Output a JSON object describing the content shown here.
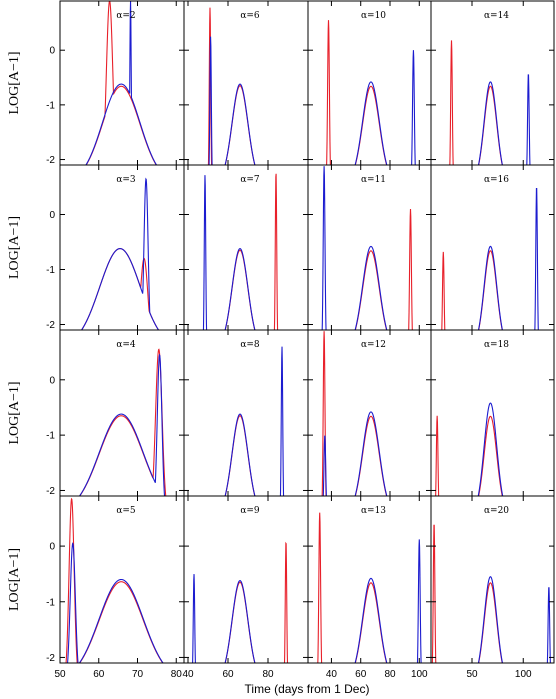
{
  "chart_data": {
    "type": "line",
    "xlabel": "Time (days from 1 Dec)",
    "ylabel": "LOG[A−1]",
    "ylim": [
      -2.1,
      0.9
    ],
    "yticks": [
      "-2",
      "-1",
      "0"
    ],
    "grid": false,
    "series_colors": {
      "red": "#e8202a",
      "blue": "#1c1ccf"
    },
    "columns": [
      {
        "xlim": [
          50,
          82
        ],
        "xticks": [
          "50",
          "60",
          "70",
          "80"
        ]
      },
      {
        "xlim": [
          38,
          100
        ],
        "xticks": [
          "40",
          "60",
          "80"
        ]
      },
      {
        "xlim": [
          24,
          108
        ],
        "xticks": [
          "40",
          "60",
          "80",
          "100"
        ]
      },
      {
        "xlim": [
          10,
          130
        ],
        "xticks": [
          "50",
          "100"
        ]
      }
    ],
    "panels": [
      {
        "label": "α=2",
        "bump": {
          "red": {
            "center": 65.8,
            "peak": -0.66,
            "halfwidth": 11
          },
          "blue": {
            "center": 65.8,
            "peak": -0.62,
            "halfwidth": 11
          }
        },
        "spikes": [
          {
            "color": "red",
            "x": 62.8,
            "y": 0.9,
            "halfwidth": 1.4
          },
          {
            "color": "blue",
            "x": 68.2,
            "y": 0.9,
            "halfwidth": 0.3
          }
        ]
      },
      {
        "label": "α=6",
        "bump": {
          "red": {
            "center": 66,
            "peak": -0.65,
            "halfwidth": 9
          },
          "blue": {
            "center": 66,
            "peak": -0.62,
            "halfwidth": 9
          }
        },
        "spikes": [
          {
            "color": "red",
            "x": 51,
            "y": 0.78,
            "halfwidth": 0.6
          },
          {
            "color": "blue",
            "x": 51.3,
            "y": 0.25,
            "halfwidth": 0.6
          }
        ]
      },
      {
        "label": "α=10",
        "bump": {
          "red": {
            "center": 67,
            "peak": -0.66,
            "halfwidth": 13
          },
          "blue": {
            "center": 67,
            "peak": -0.58,
            "halfwidth": 13
          }
        },
        "spikes": [
          {
            "color": "red",
            "x": 38,
            "y": 0.55,
            "halfwidth": 1
          },
          {
            "color": "blue",
            "x": 96,
            "y": 0.0,
            "halfwidth": 1
          }
        ]
      },
      {
        "label": "α=14",
        "bump": {
          "red": {
            "center": 68,
            "peak": -0.66,
            "halfwidth": 14
          },
          "blue": {
            "center": 68,
            "peak": -0.58,
            "halfwidth": 14
          }
        },
        "spikes": [
          {
            "color": "red",
            "x": 30,
            "y": 0.18,
            "halfwidth": 1.3
          },
          {
            "color": "blue",
            "x": 105,
            "y": -0.42,
            "halfwidth": 1.3
          }
        ]
      },
      {
        "label": "α=3",
        "bump": {
          "red": {
            "center": 65.5,
            "peak": -0.62,
            "halfwidth": 12
          },
          "blue": {
            "center": 65.5,
            "peak": -0.62,
            "halfwidth": 12
          }
        },
        "spikes": [
          {
            "color": "blue",
            "x": 72.2,
            "y": 0.65,
            "halfwidth": 0.9
          },
          {
            "color": "red",
            "x": 71.7,
            "y": -0.8,
            "halfwidth": 1.6
          }
        ]
      },
      {
        "label": "α=7",
        "bump": {
          "red": {
            "center": 66,
            "peak": -0.65,
            "halfwidth": 9
          },
          "blue": {
            "center": 66,
            "peak": -0.62,
            "halfwidth": 9
          }
        },
        "spikes": [
          {
            "color": "blue",
            "x": 48.5,
            "y": 0.72,
            "halfwidth": 0.6
          },
          {
            "color": "red",
            "x": 84,
            "y": 0.78,
            "halfwidth": 0.6
          }
        ]
      },
      {
        "label": "α=11",
        "bump": {
          "red": {
            "center": 67,
            "peak": -0.66,
            "halfwidth": 13
          },
          "blue": {
            "center": 67,
            "peak": -0.58,
            "halfwidth": 13
          }
        },
        "spikes": [
          {
            "color": "blue",
            "x": 35,
            "y": 0.88,
            "halfwidth": 1
          },
          {
            "color": "red",
            "x": 94,
            "y": 0.1,
            "halfwidth": 1
          }
        ]
      },
      {
        "label": "α=16",
        "bump": {
          "red": {
            "center": 68,
            "peak": -0.66,
            "halfwidth": 14
          },
          "blue": {
            "center": 68,
            "peak": -0.58,
            "halfwidth": 14
          }
        },
        "spikes": [
          {
            "color": "red",
            "x": 22,
            "y": -0.68,
            "halfwidth": 1.3
          },
          {
            "color": "blue",
            "x": 113,
            "y": 0.52,
            "halfwidth": 1.3
          }
        ]
      },
      {
        "label": "α=4",
        "bump": {
          "red": {
            "center": 65.8,
            "peak": -0.65,
            "halfwidth": 13
          },
          "blue": {
            "center": 65.8,
            "peak": -0.62,
            "halfwidth": 13
          }
        },
        "spikes": [
          {
            "color": "red",
            "x": 75.5,
            "y": 0.55,
            "halfwidth": 1.4
          },
          {
            "color": "blue",
            "x": 75.7,
            "y": 0.45,
            "halfwidth": 1
          }
        ]
      },
      {
        "label": "α=8",
        "bump": {
          "red": {
            "center": 66,
            "peak": -0.65,
            "halfwidth": 9
          },
          "blue": {
            "center": 66,
            "peak": -0.62,
            "halfwidth": 9
          }
        },
        "spikes": [
          {
            "color": "blue",
            "x": 87,
            "y": 0.6,
            "halfwidth": 0.6
          }
        ]
      },
      {
        "label": "α=12",
        "bump": {
          "red": {
            "center": 67,
            "peak": -0.66,
            "halfwidth": 13
          },
          "blue": {
            "center": 67,
            "peak": -0.58,
            "halfwidth": 13
          }
        },
        "spikes": [
          {
            "color": "red",
            "x": 35,
            "y": 0.88,
            "halfwidth": 1
          },
          {
            "color": "blue",
            "x": 35.5,
            "y": -1.0,
            "halfwidth": 1
          }
        ]
      },
      {
        "label": "α=18",
        "bump": {
          "red": {
            "center": 68,
            "peak": -0.66,
            "halfwidth": 14
          },
          "blue": {
            "center": 68,
            "peak": -0.42,
            "halfwidth": 14
          }
        },
        "spikes": [
          {
            "color": "red",
            "x": 16,
            "y": -0.65,
            "halfwidth": 1.3
          }
        ]
      },
      {
        "label": "α=5",
        "bump": {
          "red": {
            "center": 65.8,
            "peak": -0.64,
            "halfwidth": 13
          },
          "blue": {
            "center": 65.8,
            "peak": -0.6,
            "halfwidth": 13
          }
        },
        "spikes": [
          {
            "color": "red",
            "x": 53,
            "y": 0.85,
            "halfwidth": 1.1
          },
          {
            "color": "blue",
            "x": 53.3,
            "y": 0.05,
            "halfwidth": 1.1
          }
        ]
      },
      {
        "label": "α=9",
        "bump": {
          "red": {
            "center": 66,
            "peak": -0.65,
            "halfwidth": 9
          },
          "blue": {
            "center": 66,
            "peak": -0.62,
            "halfwidth": 9
          }
        },
        "spikes": [
          {
            "color": "blue",
            "x": 43,
            "y": -0.5,
            "halfwidth": 0.6
          },
          {
            "color": "red",
            "x": 89,
            "y": 0.1,
            "halfwidth": 0.6
          }
        ]
      },
      {
        "label": "α=13",
        "bump": {
          "red": {
            "center": 67,
            "peak": -0.66,
            "halfwidth": 13
          },
          "blue": {
            "center": 67,
            "peak": -0.58,
            "halfwidth": 13
          }
        },
        "spikes": [
          {
            "color": "red",
            "x": 32,
            "y": 0.6,
            "halfwidth": 1
          },
          {
            "color": "blue",
            "x": 100,
            "y": 0.12,
            "halfwidth": 1
          }
        ]
      },
      {
        "label": "α=20",
        "bump": {
          "red": {
            "center": 68,
            "peak": -0.66,
            "halfwidth": 14
          },
          "blue": {
            "center": 68,
            "peak": -0.55,
            "halfwidth": 14
          }
        },
        "spikes": [
          {
            "color": "red",
            "x": 13,
            "y": 0.42,
            "halfwidth": 1.3
          },
          {
            "color": "blue",
            "x": 125,
            "y": -0.72,
            "halfwidth": 1.3
          }
        ]
      }
    ]
  }
}
